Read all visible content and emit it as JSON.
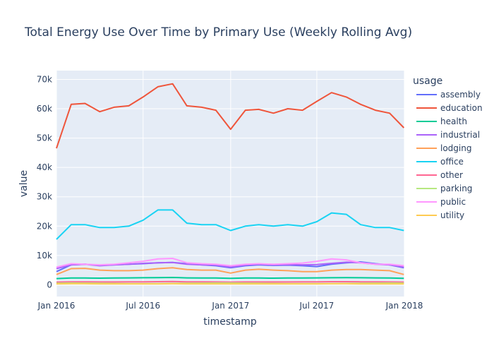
{
  "chart_data": {
    "type": "line",
    "title": "Total Energy Use Over Time by Primary Use (Weekly Rolling Avg)",
    "xlabel": "timestamp",
    "ylabel": "value",
    "x_ticks": [
      "Jan 2016",
      "Jul 2016",
      "Jan 2017",
      "Jul 2017",
      "Jan 2018"
    ],
    "y_ticks": [
      "0",
      "10k",
      "20k",
      "30k",
      "40k",
      "50k",
      "60k",
      "70k"
    ],
    "ylim": [
      -4000,
      73000
    ],
    "grid": true,
    "legend_title": "usage",
    "legend_position": "right",
    "x": [
      "2016-01-01",
      "2016-02-01",
      "2016-03-01",
      "2016-04-01",
      "2016-05-01",
      "2016-06-01",
      "2016-07-01",
      "2016-08-01",
      "2016-09-01",
      "2016-10-01",
      "2016-11-01",
      "2016-12-01",
      "2017-01-01",
      "2017-02-01",
      "2017-03-01",
      "2017-04-01",
      "2017-05-01",
      "2017-06-01",
      "2017-07-01",
      "2017-08-01",
      "2017-09-01",
      "2017-10-01",
      "2017-11-01",
      "2017-12-01",
      "2017-12-31"
    ],
    "series": [
      {
        "name": "assembly",
        "color": "#636efa",
        "values": [
          4500,
          6800,
          7000,
          6600,
          6800,
          7000,
          7200,
          7500,
          7600,
          7200,
          6800,
          6500,
          5800,
          6500,
          6800,
          6600,
          6700,
          6500,
          6200,
          7000,
          7500,
          7800,
          7200,
          6800,
          5800
        ]
      },
      {
        "name": "education",
        "color": "#ef553b",
        "values": [
          46500,
          61500,
          61800,
          59000,
          60500,
          61000,
          64000,
          67500,
          68500,
          61000,
          60500,
          59500,
          53000,
          59500,
          59800,
          58500,
          60000,
          59500,
          62500,
          65500,
          64000,
          61500,
          59500,
          58500,
          53500
        ]
      },
      {
        "name": "health",
        "color": "#00cc96",
        "values": [
          2100,
          2300,
          2300,
          2250,
          2300,
          2350,
          2400,
          2450,
          2500,
          2350,
          2300,
          2300,
          2200,
          2300,
          2300,
          2250,
          2300,
          2300,
          2350,
          2400,
          2450,
          2400,
          2350,
          2300,
          2200
        ]
      },
      {
        "name": "industrial",
        "color": "#ab63fa",
        "values": [
          5500,
          6800,
          7000,
          6500,
          6800,
          7000,
          7300,
          7500,
          7600,
          7000,
          6800,
          6700,
          6000,
          6700,
          7000,
          6800,
          6900,
          6800,
          6900,
          7300,
          7700,
          7500,
          7000,
          6800,
          6000
        ]
      },
      {
        "name": "lodging",
        "color": "#ffa15a",
        "values": [
          3500,
          5500,
          5600,
          5000,
          4800,
          4800,
          5000,
          5500,
          5800,
          5200,
          5000,
          5000,
          4000,
          5000,
          5300,
          5000,
          4800,
          4500,
          4500,
          5000,
          5200,
          5200,
          5000,
          4800,
          3500
        ]
      },
      {
        "name": "office",
        "color": "#19d3f3",
        "values": [
          15500,
          20500,
          20500,
          19500,
          19500,
          20000,
          22000,
          25500,
          25500,
          21000,
          20500,
          20500,
          18500,
          20000,
          20500,
          20000,
          20500,
          20000,
          21500,
          24500,
          24000,
          20500,
          19500,
          19500,
          18500
        ]
      },
      {
        "name": "other",
        "color": "#ff6692",
        "values": [
          900,
          1000,
          1000,
          950,
          950,
          1000,
          1000,
          1050,
          1100,
          1000,
          1000,
          950,
          900,
          950,
          950,
          950,
          950,
          1000,
          1000,
          1050,
          1050,
          1000,
          1000,
          950,
          900
        ]
      },
      {
        "name": "parking",
        "color": "#b6e880",
        "values": [
          500,
          600,
          550,
          500,
          450,
          400,
          400,
          400,
          450,
          500,
          550,
          600,
          600,
          550,
          500,
          450,
          400,
          400,
          400,
          400,
          450,
          500,
          550,
          600,
          550
        ]
      },
      {
        "name": "public",
        "color": "#ff97ff",
        "values": [
          6000,
          7200,
          7000,
          6800,
          7000,
          7500,
          8000,
          8800,
          9000,
          7500,
          7200,
          7000,
          6500,
          7000,
          7200,
          7000,
          7200,
          7400,
          8000,
          8800,
          8500,
          7500,
          7000,
          7000,
          6500
        ]
      },
      {
        "name": "utility",
        "color": "#fecb52",
        "values": [
          300,
          350,
          350,
          300,
          300,
          300,
          300,
          300,
          350,
          300,
          300,
          300,
          300,
          300,
          300,
          300,
          300,
          300,
          300,
          350,
          350,
          300,
          300,
          300,
          300
        ]
      }
    ]
  }
}
